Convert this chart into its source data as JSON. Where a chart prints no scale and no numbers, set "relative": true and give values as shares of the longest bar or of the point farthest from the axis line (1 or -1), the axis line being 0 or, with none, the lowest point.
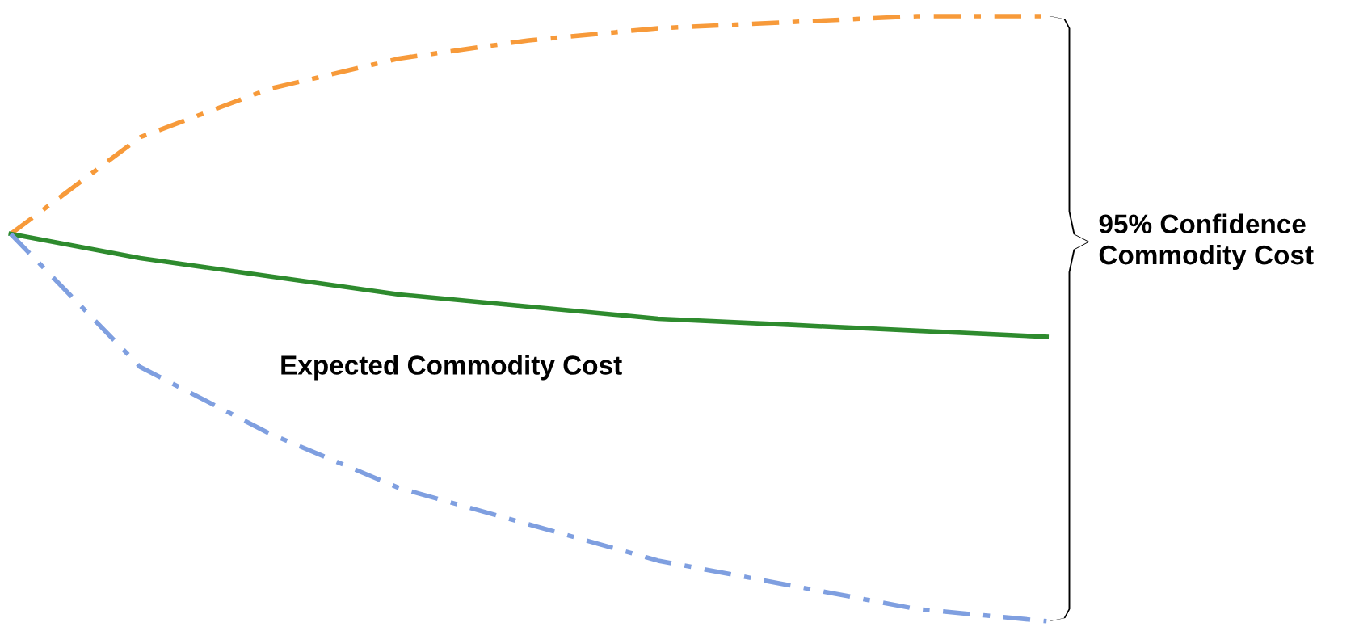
{
  "chart_data": {
    "type": "line",
    "relative": true,
    "categories": [
      null,
      null,
      null,
      null,
      null,
      null,
      null,
      null,
      null
    ],
    "series": [
      {
        "color": "#f79a3a",
        "line_style": "dashdot",
        "values": [
          0.64,
          0.8,
          0.88,
          0.93,
          0.96,
          0.98,
          0.99,
          1.0,
          1.0
        ]
      },
      {
        "color": "#2e8b2e",
        "line_style": "solid",
        "values": [
          0.64,
          0.6,
          0.57,
          0.54,
          0.52,
          0.5,
          0.49,
          0.48,
          0.47
        ]
      },
      {
        "color": "#7f9fe0",
        "line_style": "dashdot",
        "values": [
          0.64,
          0.42,
          0.31,
          0.22,
          0.16,
          0.1,
          0.06,
          0.02,
          0.0
        ]
      }
    ],
    "annotations": [
      "Expected Commodity Cost",
      "95% Confidence\nCommodity Cost"
    ],
    "grid": false,
    "legend": false
  }
}
